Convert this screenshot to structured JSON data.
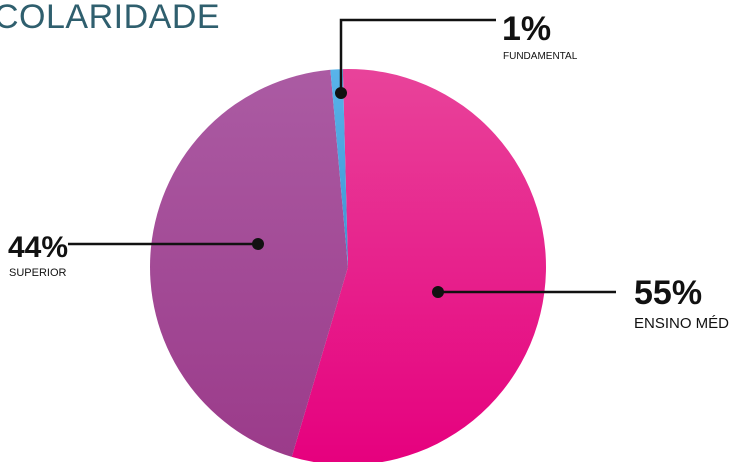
{
  "colors": {
    "title": "#2f5f6e",
    "text": "#111111",
    "leader": "#111111"
  },
  "chart_data": {
    "type": "pie",
    "title": "COLARIDADE",
    "slices": [
      {
        "label": "ENSINO MÉDIO",
        "value": 55,
        "display": "55%",
        "color": "#e6168c"
      },
      {
        "label": "SUPERIOR",
        "value": 44,
        "display": "44%",
        "color": "#a6478f"
      },
      {
        "label": "FUNDAMENTAL",
        "value": 1,
        "display": "1%",
        "color": "#4fa3df"
      }
    ],
    "legend": "none"
  }
}
